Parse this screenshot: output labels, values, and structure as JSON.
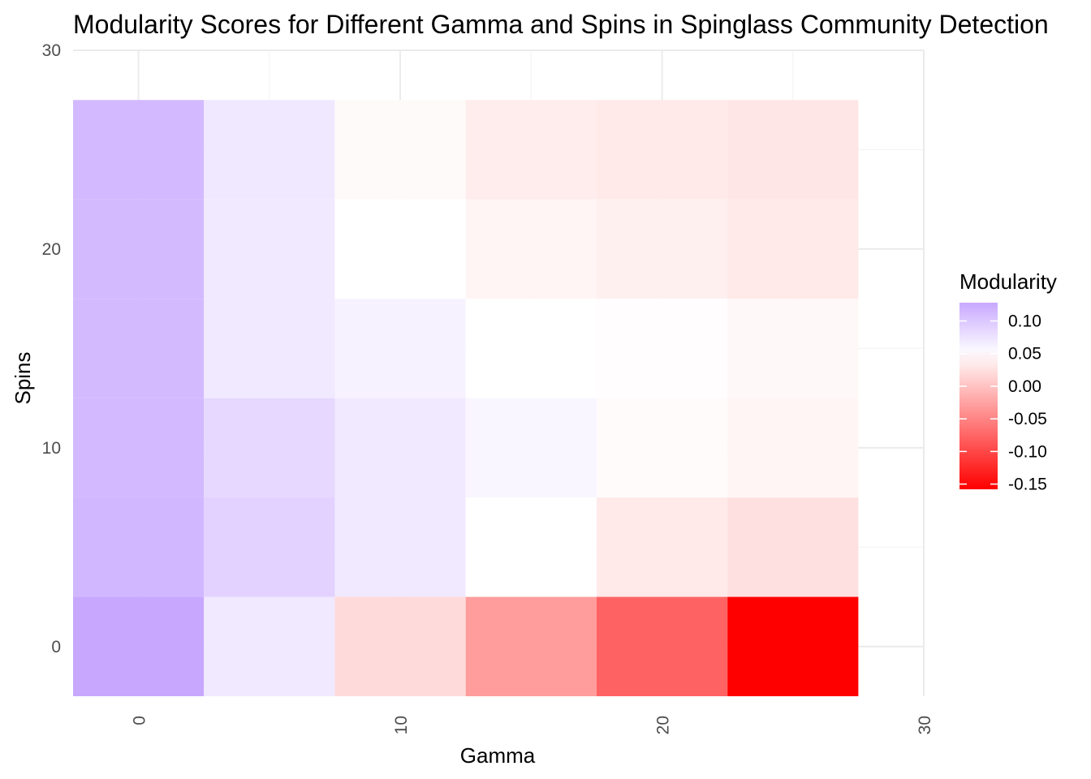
{
  "chart_data": {
    "type": "heatmap",
    "title": "Modularity Scores for Different Gamma and Spins in Spinglass Community Detection",
    "xlabel": "Gamma",
    "ylabel": "Spins",
    "x": [
      0,
      5,
      10,
      15,
      20,
      25
    ],
    "y": [
      0,
      5,
      10,
      15,
      20,
      25
    ],
    "tile_width": 5,
    "tile_height": 5,
    "xlim": [
      -2.5,
      30
    ],
    "ylim": [
      -2.5,
      30
    ],
    "x_ticks": [
      0,
      10,
      20,
      30
    ],
    "y_ticks": [
      0,
      10,
      20,
      30
    ],
    "x_tick_labels": [
      "0",
      "10",
      "20",
      "30"
    ],
    "y_tick_labels": [
      "0",
      "10",
      "20",
      "30"
    ],
    "grid": true,
    "values": [
      [
        0.128,
        0.07,
        0.02,
        -0.03,
        -0.078,
        -0.158
      ],
      [
        0.115,
        0.09,
        0.07,
        0.05,
        0.032,
        0.025
      ],
      [
        0.113,
        0.085,
        0.07,
        0.058,
        0.047,
        0.042
      ],
      [
        0.112,
        0.07,
        0.062,
        0.05,
        0.048,
        0.044
      ],
      [
        0.112,
        0.07,
        0.05,
        0.042,
        0.038,
        0.032
      ],
      [
        0.113,
        0.071,
        0.046,
        0.035,
        0.032,
        0.03
      ]
    ],
    "legend": {
      "title": "Modularity",
      "position": "right",
      "breaks": [
        0.1,
        0.05,
        0.0,
        -0.05,
        -0.1,
        -0.15
      ],
      "labels": [
        "0.10",
        "0.05",
        "0.00",
        "-0.05",
        "-0.10",
        "-0.15"
      ],
      "limits": [
        -0.158,
        0.128
      ],
      "color_low": "#ff0000",
      "color_mid": "#ffffff",
      "color_high": "#c8a8ff",
      "midpoint": 0.05
    }
  }
}
